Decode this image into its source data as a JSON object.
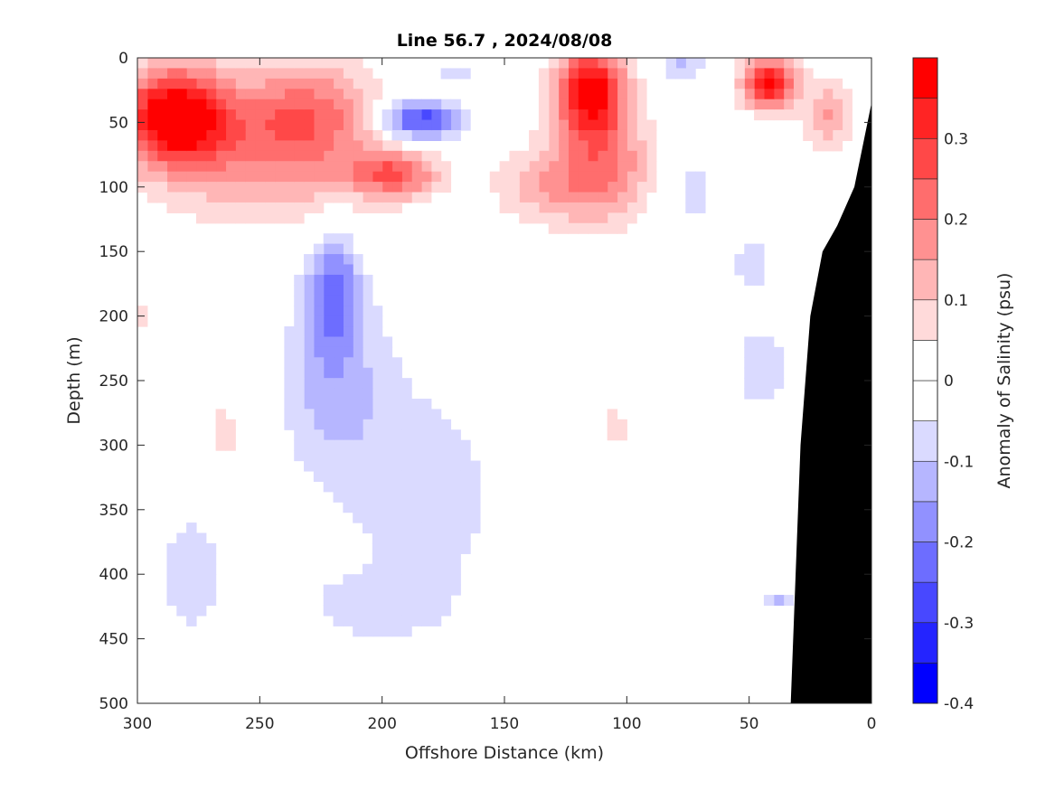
{
  "chart_data": {
    "type": "heatmap",
    "subtype": "filled-contour",
    "title": "Line 56.7 , 2024/08/08",
    "xlabel": "Offshore Distance (km)",
    "ylabel": "Depth (m)",
    "xlim": [
      300,
      0
    ],
    "ylim": [
      0,
      500
    ],
    "xticks": [
      "300",
      "250",
      "200",
      "150",
      "100",
      "50",
      "0"
    ],
    "yticks": [
      "0",
      "50",
      "100",
      "150",
      "200",
      "250",
      "300",
      "350",
      "400",
      "450",
      "500"
    ],
    "colorbar": {
      "label": "Anomaly of Salinity (psu)",
      "range": [
        -0.4,
        0.4
      ],
      "level_step": 0.05,
      "ticks": [
        "0.3",
        "0.2",
        "0.1",
        "0",
        "-0.1",
        "-0.2",
        "-0.3",
        "-0.4"
      ],
      "tick_values": [
        0.3,
        0.2,
        0.1,
        0,
        -0.1,
        -0.2,
        -0.3,
        -0.4
      ],
      "colors": [
        "#0000ff",
        "#2424ff",
        "#4848ff",
        "#6d6dff",
        "#9191ff",
        "#b6b6ff",
        "#dadaff",
        "#ffffff",
        "#ffffff",
        "#ffdada",
        "#ffb6b6",
        "#ff9191",
        "#ff6d6d",
        "#ff4848",
        "#ff2424",
        "#ff0000"
      ]
    },
    "anomaly_features_km_m_psu": [
      {
        "x": 285,
        "depth": 45,
        "value": 0.42,
        "sx": 22,
        "sz": 38
      },
      {
        "x": 232,
        "depth": 40,
        "value": 0.2,
        "sx": 30,
        "sz": 38
      },
      {
        "x": 195,
        "depth": 90,
        "value": 0.22,
        "sx": 18,
        "sz": 18
      },
      {
        "x": 245,
        "depth": 85,
        "value": 0.15,
        "sx": 45,
        "sz": 45
      },
      {
        "x": 185,
        "depth": 48,
        "value": -0.3,
        "sx": 16,
        "sz": 16
      },
      {
        "x": 172,
        "depth": 12,
        "value": -0.08,
        "sx": 9,
        "sz": 10
      },
      {
        "x": 115,
        "depth": 25,
        "value": 0.38,
        "sx": 14,
        "sz": 35
      },
      {
        "x": 110,
        "depth": 85,
        "value": 0.2,
        "sx": 22,
        "sz": 45
      },
      {
        "x": 135,
        "depth": 100,
        "value": 0.1,
        "sx": 22,
        "sz": 28
      },
      {
        "x": 78,
        "depth": 5,
        "value": -0.12,
        "sx": 9,
        "sz": 15
      },
      {
        "x": 75,
        "depth": 100,
        "value": -0.07,
        "sx": 14,
        "sz": 50
      },
      {
        "x": 42,
        "depth": 20,
        "value": 0.36,
        "sx": 11,
        "sz": 20
      },
      {
        "x": 18,
        "depth": 45,
        "value": 0.15,
        "sx": 10,
        "sz": 28
      },
      {
        "x": 220,
        "depth": 180,
        "value": -0.2,
        "sx": 10,
        "sz": 45
      },
      {
        "x": 220,
        "depth": 250,
        "value": -0.12,
        "sx": 22,
        "sz": 75
      },
      {
        "x": 182,
        "depth": 340,
        "value": -0.075,
        "sx": 35,
        "sz": 100
      },
      {
        "x": 205,
        "depth": 425,
        "value": -0.07,
        "sx": 28,
        "sz": 25
      },
      {
        "x": 278,
        "depth": 400,
        "value": -0.075,
        "sx": 16,
        "sz": 60
      },
      {
        "x": 265,
        "depth": 290,
        "value": 0.075,
        "sx": 7,
        "sz": 32
      },
      {
        "x": 105,
        "depth": 285,
        "value": 0.075,
        "sx": 6,
        "sz": 20
      },
      {
        "x": 45,
        "depth": 240,
        "value": -0.08,
        "sx": 13,
        "sz": 40
      },
      {
        "x": 48,
        "depth": 160,
        "value": -0.07,
        "sx": 10,
        "sz": 25
      },
      {
        "x": 300,
        "depth": 200,
        "value": 0.075,
        "sx": 4,
        "sz": 12
      },
      {
        "x": 38,
        "depth": 420,
        "value": -0.12,
        "sx": 7,
        "sz": 5
      }
    ],
    "bathymetry_km_m": [
      [
        0,
        35
      ],
      [
        7,
        100
      ],
      [
        14,
        130
      ],
      [
        20,
        150
      ],
      [
        25,
        200
      ],
      [
        29,
        300
      ],
      [
        31,
        400
      ],
      [
        33,
        500
      ],
      [
        0,
        500
      ]
    ]
  }
}
